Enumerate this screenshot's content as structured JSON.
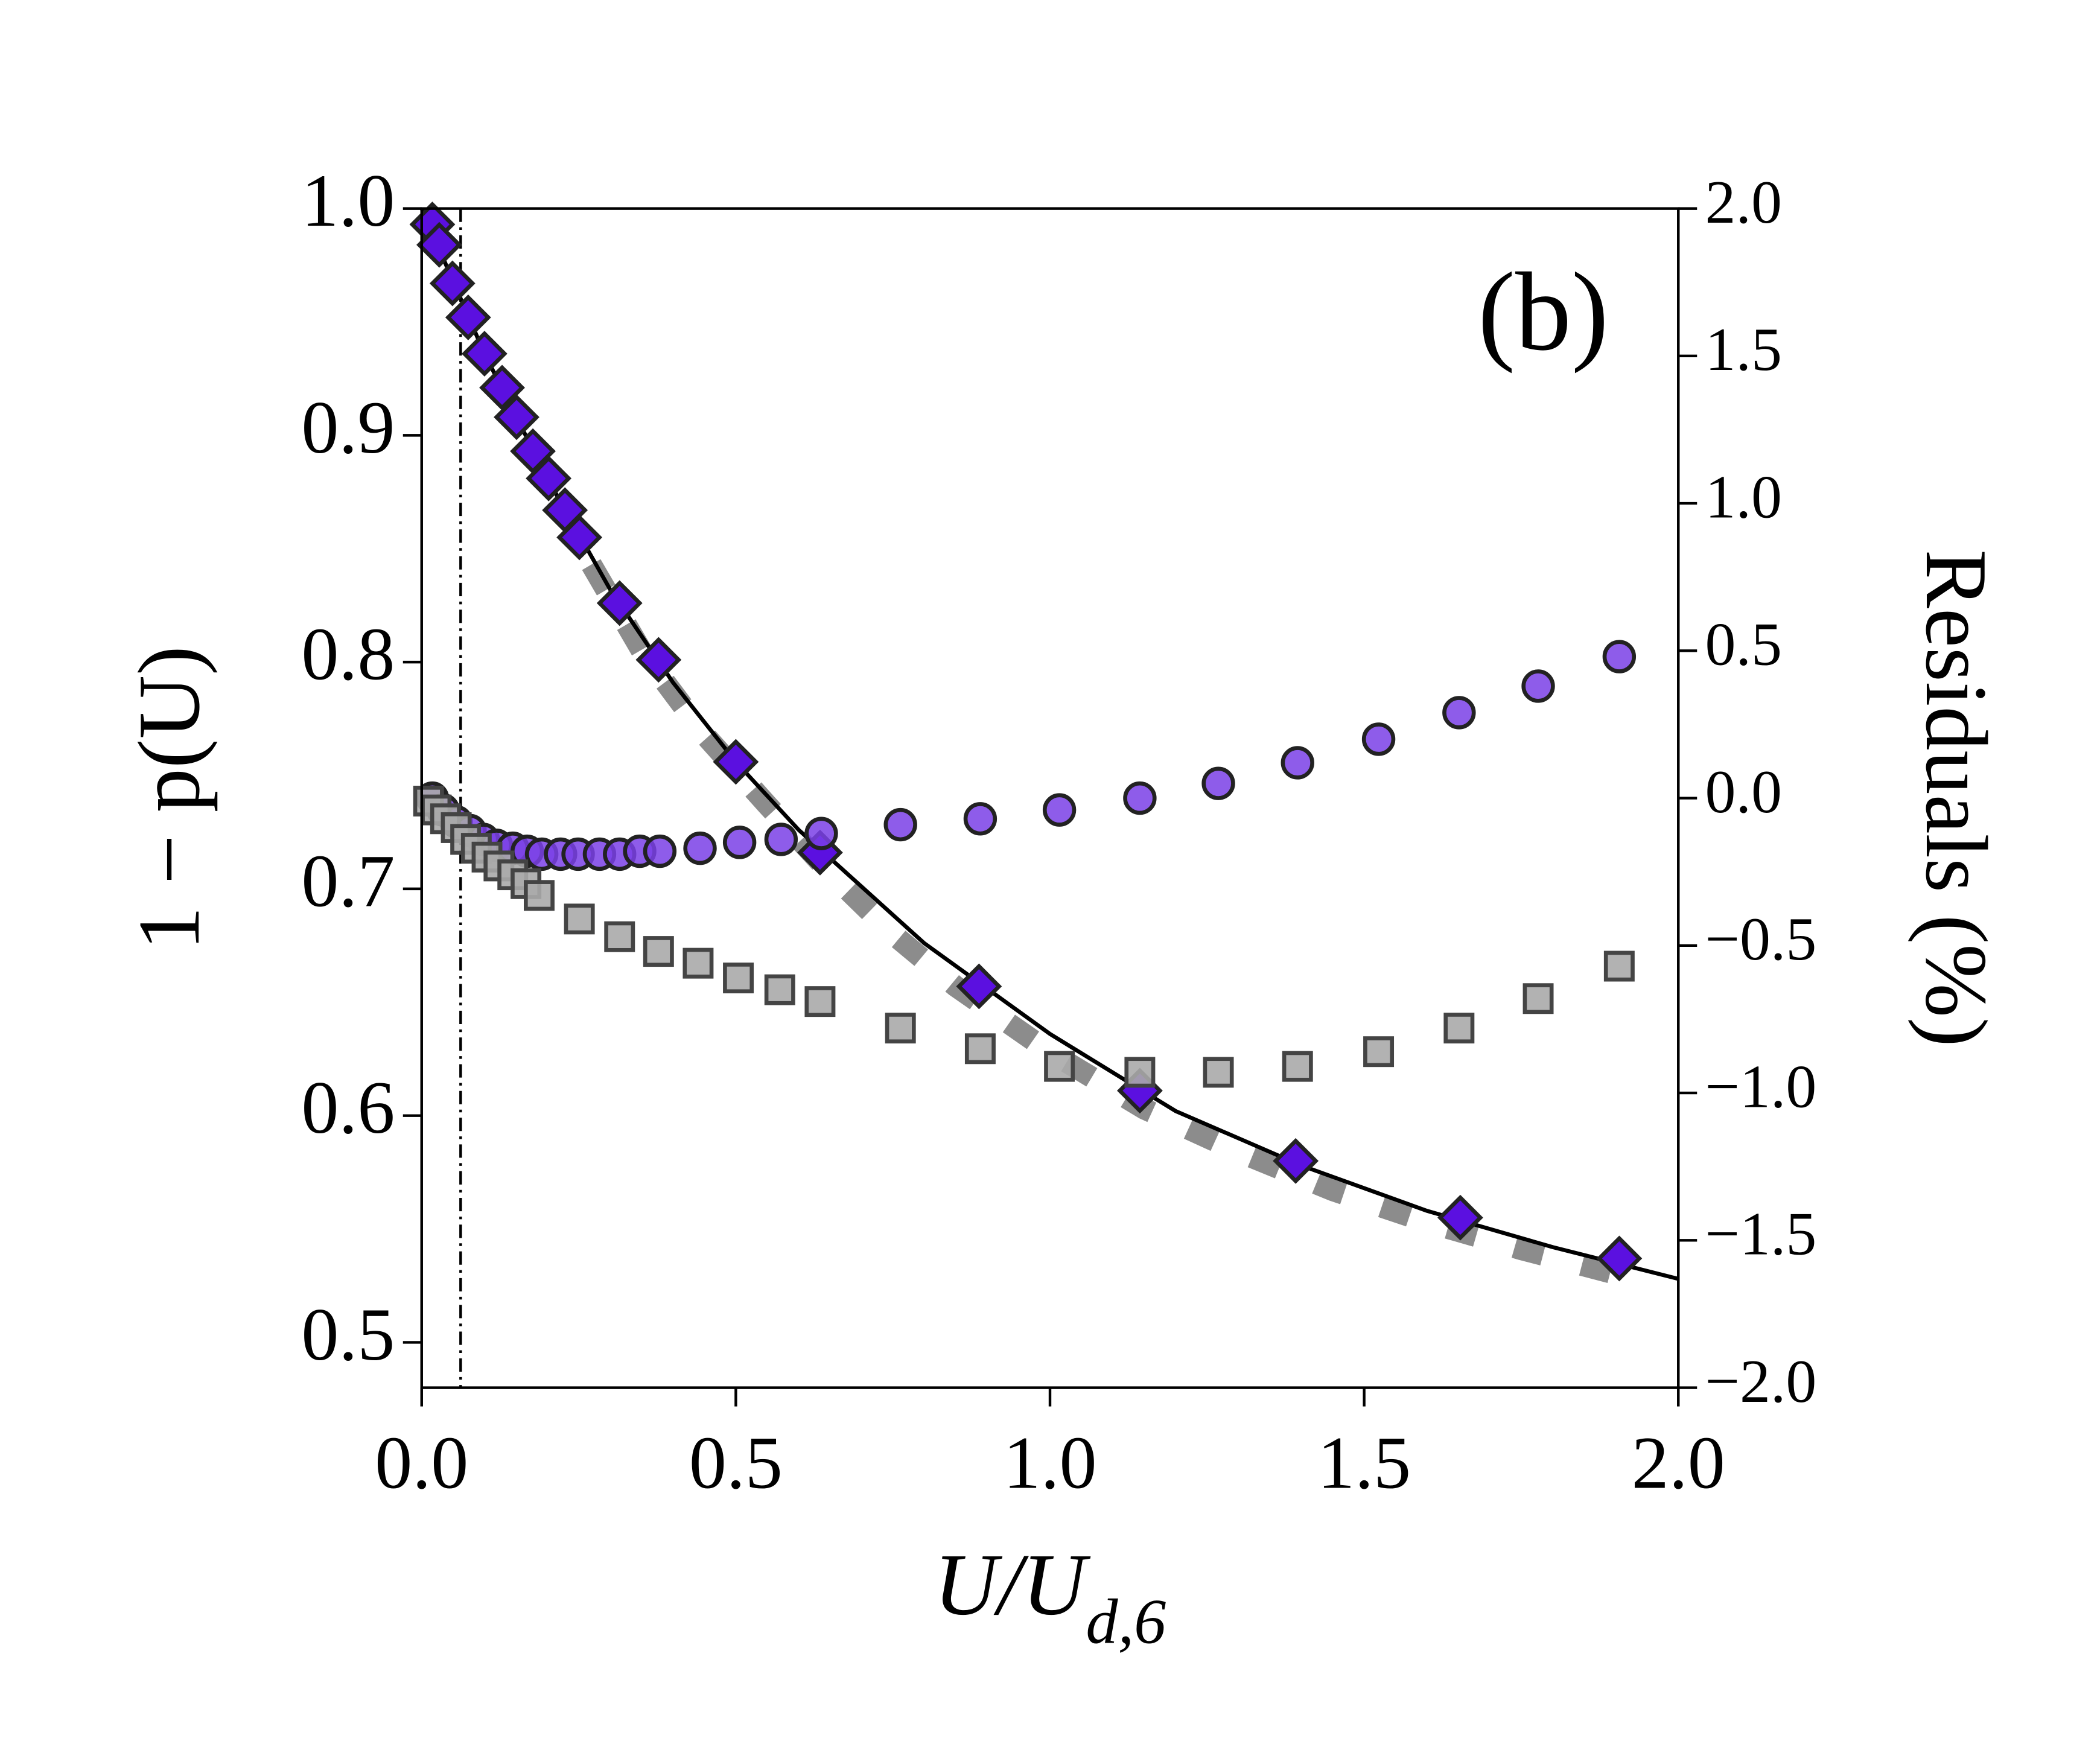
{
  "chart_data": {
    "type": "scatter",
    "annotation": "(b)",
    "xlabel": {
      "main": "U/U",
      "sub": "d,6"
    },
    "ylabel": "1 − p(U)",
    "y2label": "Residuals (%)",
    "xlim": [
      0,
      2
    ],
    "ylim": [
      0.48,
      1.0
    ],
    "y2lim": [
      -2,
      2
    ],
    "xticks": [
      {
        "value": 0,
        "label": "0.0"
      },
      0.5,
      {
        "value": 1,
        "label": "1.0"
      },
      1.5,
      {
        "value": 2,
        "label": "2.0"
      }
    ],
    "yticks": [
      0.5,
      0.6,
      0.7,
      0.8,
      0.9,
      {
        "value": 1,
        "label": "1.0"
      }
    ],
    "y2ticks": [
      {
        "value": -2,
        "label": "−2.0"
      },
      {
        "value": -1.5,
        "label": "−1.5"
      },
      {
        "value": -1,
        "label": "−1.0"
      },
      {
        "value": -0.5,
        "label": "−0.5"
      },
      {
        "value": 0,
        "label": "0.0"
      },
      0.5,
      {
        "value": 1,
        "label": "1.0"
      },
      1.5,
      {
        "value": 2,
        "label": "2.0"
      }
    ],
    "vline_x": 0.062,
    "series": [
      {
        "kind": "line",
        "style": "dashed",
        "color": "#8c8c8c",
        "x": [
          0.27,
          0.35,
          0.45,
          0.55,
          0.65,
          0.75,
          0.85,
          1.0,
          1.15,
          1.3,
          1.45,
          1.6,
          1.75,
          1.93
        ],
        "values": [
          0.843,
          0.805,
          0.768,
          0.737,
          0.707,
          0.68,
          0.657,
          0.628,
          0.603,
          0.584,
          0.567,
          0.553,
          0.541,
          0.528
        ]
      },
      {
        "kind": "line",
        "style": "solid",
        "color": "#000000",
        "x": [
          0,
          0.1,
          0.2,
          0.3,
          0.4,
          0.5,
          0.6,
          0.8,
          1.0,
          1.2,
          1.4,
          1.6,
          1.8,
          2.0
        ],
        "values": [
          1.0,
          0.936,
          0.881,
          0.832,
          0.791,
          0.756,
          0.726,
          0.676,
          0.636,
          0.602,
          0.578,
          0.558,
          0.542,
          0.528
        ]
      },
      {
        "kind": "marker",
        "marker": "diamond",
        "color": "#5b10e0",
        "x": [
          0.017,
          0.028,
          0.049,
          0.074,
          0.1,
          0.128,
          0.151,
          0.177,
          0.202,
          0.228,
          0.251,
          0.315,
          0.377,
          0.5,
          0.634,
          0.887,
          1.143,
          1.391,
          1.653,
          1.906
        ],
        "values": [
          0.993,
          0.984,
          0.967,
          0.952,
          0.936,
          0.921,
          0.908,
          0.893,
          0.881,
          0.867,
          0.855,
          0.826,
          0.801,
          0.756,
          0.716,
          0.657,
          0.611,
          0.58,
          0.555,
          0.537
        ]
      },
      {
        "kind": "marker",
        "marker": "circle",
        "color": "#7a3fe6",
        "axis": "y2",
        "x": [
          0.017,
          0.034,
          0.055,
          0.077,
          0.098,
          0.119,
          0.145,
          0.168,
          0.191,
          0.221,
          0.249,
          0.283,
          0.315,
          0.347,
          0.379,
          0.443,
          0.506,
          0.572,
          0.636,
          0.762,
          0.889,
          1.015,
          1.143,
          1.268,
          1.394,
          1.523,
          1.651,
          1.777,
          1.906
        ],
        "values": [
          0.0,
          -0.04,
          -0.08,
          -0.11,
          -0.14,
          -0.16,
          -0.17,
          -0.18,
          -0.19,
          -0.19,
          -0.19,
          -0.19,
          -0.19,
          -0.18,
          -0.18,
          -0.17,
          -0.15,
          -0.14,
          -0.12,
          -0.09,
          -0.07,
          -0.04,
          0.0,
          0.05,
          0.12,
          0.2,
          0.29,
          0.38,
          0.48
        ]
      },
      {
        "kind": "marker",
        "marker": "square",
        "color": "#aaaaaa",
        "axis": "y2",
        "x": [
          0.011,
          0.023,
          0.038,
          0.055,
          0.07,
          0.087,
          0.104,
          0.123,
          0.145,
          0.166,
          0.187,
          0.251,
          0.315,
          0.377,
          0.44,
          0.504,
          0.57,
          0.634,
          0.762,
          0.889,
          1.015,
          1.143,
          1.268,
          1.394,
          1.523,
          1.651,
          1.777,
          1.906
        ],
        "values": [
          -0.01,
          -0.04,
          -0.07,
          -0.1,
          -0.14,
          -0.17,
          -0.2,
          -0.23,
          -0.26,
          -0.29,
          -0.33,
          -0.41,
          -0.47,
          -0.52,
          -0.56,
          -0.61,
          -0.65,
          -0.69,
          -0.78,
          -0.85,
          -0.91,
          -0.93,
          -0.93,
          -0.91,
          -0.86,
          -0.78,
          -0.68,
          -0.57
        ]
      }
    ]
  }
}
